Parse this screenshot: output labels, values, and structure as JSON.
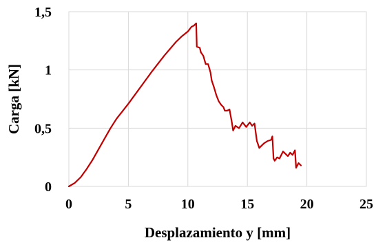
{
  "chart_data": {
    "type": "line",
    "title": "",
    "xlabel": "Desplazamiento y [mm]",
    "ylabel": "Carga [kN]",
    "xlim": [
      0,
      25
    ],
    "ylim": [
      0,
      1.5
    ],
    "x_ticks": [
      0,
      5,
      10,
      15,
      20,
      25
    ],
    "x_tick_labels": [
      "0",
      "5",
      "10",
      "15",
      "20",
      "25"
    ],
    "y_ticks": [
      0,
      0.5,
      1,
      1.5
    ],
    "y_tick_labels": [
      "0",
      "0,5",
      "1",
      "1,5"
    ],
    "grid": true,
    "legend": "none",
    "series": [
      {
        "color": "#c00000",
        "x": [
          0,
          0.5,
          1,
          1.5,
          2,
          2.5,
          3,
          3.5,
          4,
          5,
          6,
          7,
          8,
          9,
          9.5,
          10,
          10.3,
          10.5,
          10.7,
          10.75,
          11,
          11.1,
          11.3,
          11.5,
          11.7,
          11.9,
          12,
          12.2,
          12.4,
          12.6,
          12.8,
          13,
          13.1,
          13.3,
          13.5,
          13.7,
          13.8,
          14,
          14.3,
          14.6,
          14.9,
          15.2,
          15.4,
          15.6,
          15.8,
          15.9,
          16,
          16.2,
          16.4,
          16.7,
          17,
          17.1,
          17.2,
          17.3,
          17.5,
          17.7,
          18,
          18.2,
          18.4,
          18.6,
          18.8,
          19,
          19.1,
          19.3,
          19.5
        ],
        "y": [
          0,
          0.03,
          0.08,
          0.15,
          0.23,
          0.32,
          0.41,
          0.5,
          0.58,
          0.71,
          0.85,
          0.99,
          1.12,
          1.24,
          1.29,
          1.33,
          1.37,
          1.38,
          1.4,
          1.2,
          1.19,
          1.15,
          1.12,
          1.05,
          1.05,
          0.98,
          0.91,
          0.85,
          0.78,
          0.73,
          0.7,
          0.68,
          0.65,
          0.65,
          0.66,
          0.55,
          0.48,
          0.52,
          0.5,
          0.55,
          0.51,
          0.55,
          0.52,
          0.54,
          0.39,
          0.36,
          0.33,
          0.35,
          0.37,
          0.39,
          0.4,
          0.43,
          0.24,
          0.22,
          0.25,
          0.24,
          0.3,
          0.28,
          0.26,
          0.29,
          0.27,
          0.31,
          0.16,
          0.2,
          0.18
        ]
      }
    ]
  }
}
